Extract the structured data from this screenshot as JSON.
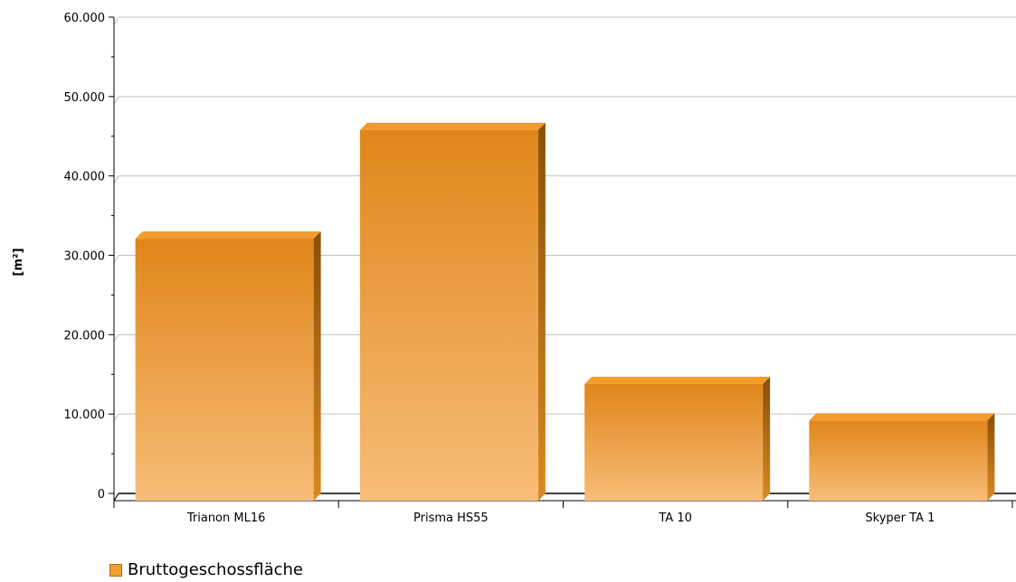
{
  "chart_data": {
    "type": "bar",
    "categories": [
      "Trianon ML16",
      "Prisma HS55",
      "TA 10",
      "Skyper TA 1"
    ],
    "series": [
      {
        "name": "Bruttogeschossfläche",
        "values": [
          33000,
          46700,
          14700,
          10100
        ]
      }
    ],
    "ylabel": "[m²]",
    "ylim": [
      0,
      60000
    ],
    "yticks": [
      0,
      10000,
      20000,
      30000,
      40000,
      50000,
      60000
    ],
    "ytick_labels": [
      "0",
      "10.000",
      "20.000",
      "30.000",
      "40.000",
      "50.000",
      "60.000"
    ],
    "grid": true,
    "legend_position": "bottom-left",
    "colors": {
      "bar_front_top": "#e0861a",
      "bar_front_bottom": "#f7bd78",
      "bar_top": "#f39b2d",
      "bar_side": "#9a5a0c",
      "grid": "#c0c0c0"
    }
  },
  "legend": {
    "label": "Bruttogeschossfläche"
  }
}
